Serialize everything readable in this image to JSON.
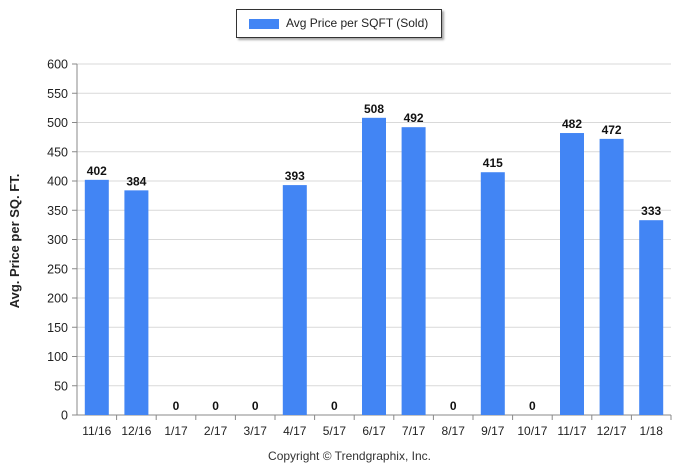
{
  "chart_data": {
    "type": "bar",
    "categories": [
      "11/16",
      "12/16",
      "1/17",
      "2/17",
      "3/17",
      "4/17",
      "5/17",
      "6/17",
      "7/17",
      "8/17",
      "9/17",
      "10/17",
      "11/17",
      "12/17",
      "1/18"
    ],
    "series": [
      {
        "name": "Avg Price per SQFT (Sold)",
        "values": [
          402,
          384,
          0,
          0,
          0,
          393,
          0,
          508,
          492,
          0,
          415,
          0,
          482,
          472,
          333
        ]
      }
    ],
    "ylabel": "Avg. Price per SQ. FT.",
    "xlabel": "",
    "ylim": [
      0,
      600
    ],
    "yticks": [
      0,
      50,
      100,
      150,
      200,
      250,
      300,
      350,
      400,
      450,
      500,
      550,
      600
    ],
    "grid": true,
    "legend_position": "top-center",
    "bar_color": "#4285f4"
  },
  "footer": {
    "copyright": "Copyright © Trendgraphix, Inc."
  }
}
